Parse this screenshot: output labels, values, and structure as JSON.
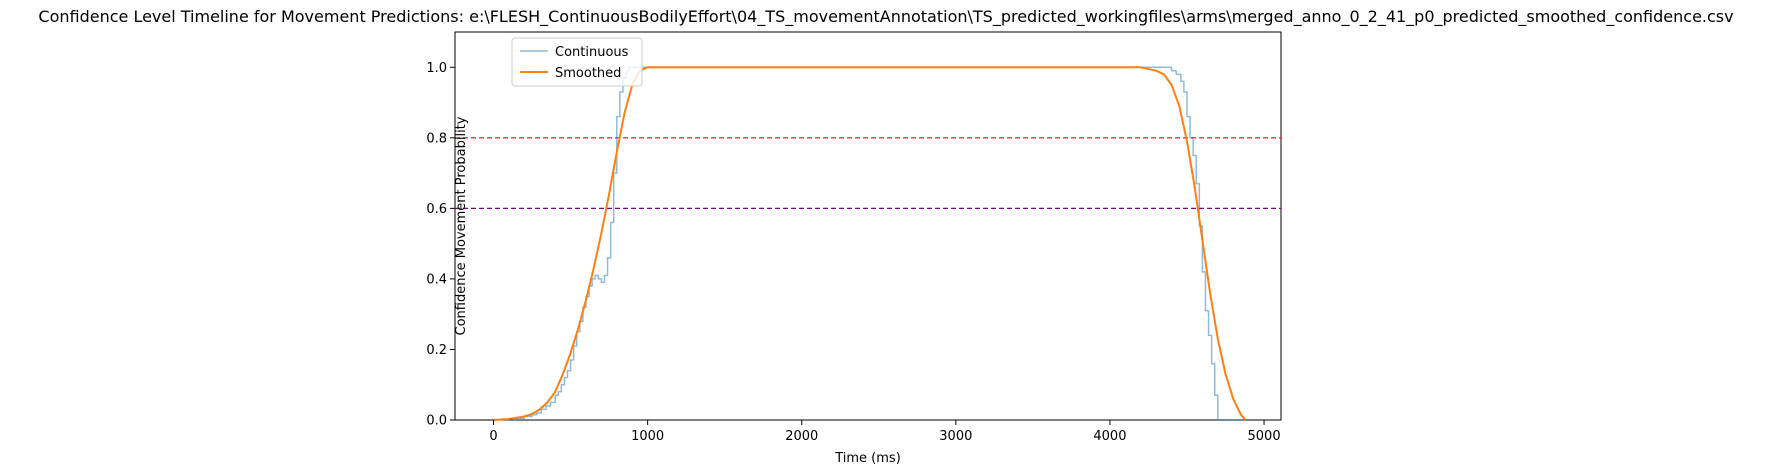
{
  "chart_data": {
    "type": "line",
    "title": "Confidence Level Timeline for Movement Predictions: e:\\FLESH_ContinuousBodilyEffort\\04_TS_movementAnnotation\\TS_predicted_workingfiles\\arms\\merged_anno_0_2_41_p0_predicted_smoothed_confidence.csv",
    "xlabel": "Time (ms)",
    "ylabel": "Confidence Movement Probability",
    "xlim": [
      -250,
      5110
    ],
    "ylim": [
      0,
      1.1
    ],
    "xticks": [
      0,
      1000,
      2000,
      3000,
      4000,
      5000
    ],
    "yticks": [
      0.0,
      0.2,
      0.4,
      0.6,
      0.8,
      1.0
    ],
    "xtick_labels": [
      "0",
      "1000",
      "2000",
      "3000",
      "4000",
      "5000"
    ],
    "ytick_labels": [
      "0.0",
      "0.2",
      "0.4",
      "0.6",
      "0.8",
      "1.0"
    ],
    "grid": false,
    "legend_position": "top-left",
    "reference_lines": [
      {
        "y": 0.8,
        "color": "#ff0000",
        "style": "dashed"
      },
      {
        "y": 0.6,
        "color": "#800080",
        "style": "dashed"
      }
    ],
    "series": [
      {
        "name": "Continuous",
        "color": "#1f77b4",
        "opacity": 0.5,
        "step": true,
        "x": [
          0,
          150,
          200,
          250,
          280,
          310,
          340,
          370,
          400,
          420,
          440,
          460,
          480,
          500,
          520,
          540,
          560,
          580,
          600,
          620,
          640,
          660,
          680,
          700,
          720,
          740,
          760,
          780,
          800,
          820,
          840,
          860,
          880,
          900,
          950,
          1000,
          4200,
          4300,
          4400,
          4430,
          4460,
          4480,
          4500,
          4520,
          4540,
          4560,
          4580,
          4600,
          4620,
          4640,
          4660,
          4680,
          4700,
          4720,
          4740,
          4800,
          4880
        ],
        "y": [
          0.0,
          0.005,
          0.01,
          0.015,
          0.02,
          0.03,
          0.04,
          0.05,
          0.07,
          0.08,
          0.1,
          0.12,
          0.14,
          0.17,
          0.21,
          0.25,
          0.28,
          0.32,
          0.35,
          0.38,
          0.4,
          0.41,
          0.4,
          0.39,
          0.41,
          0.46,
          0.56,
          0.7,
          0.86,
          0.93,
          0.97,
          0.99,
          1.0,
          1.0,
          1.0,
          1.0,
          1.0,
          1.0,
          0.99,
          0.98,
          0.96,
          0.93,
          0.86,
          0.8,
          0.75,
          0.67,
          0.55,
          0.42,
          0.31,
          0.24,
          0.16,
          0.07,
          0.0,
          0.0,
          0.0,
          0.0,
          0.0
        ],
        "width": 1.5
      },
      {
        "name": "Smoothed",
        "color": "#ff7f0e",
        "opacity": 1,
        "step": false,
        "x": [
          0,
          100,
          200,
          250,
          300,
          350,
          400,
          450,
          500,
          550,
          600,
          650,
          700,
          750,
          800,
          850,
          900,
          950,
          1000,
          1100,
          4000,
          4200,
          4300,
          4350,
          4400,
          4450,
          4500,
          4550,
          4600,
          4650,
          4700,
          4750,
          4800,
          4850,
          4880
        ],
        "y": [
          0.0,
          0.003,
          0.01,
          0.017,
          0.03,
          0.05,
          0.08,
          0.13,
          0.19,
          0.26,
          0.34,
          0.43,
          0.53,
          0.64,
          0.76,
          0.87,
          0.95,
          0.99,
          1.0,
          1.0,
          1.0,
          1.0,
          0.99,
          0.98,
          0.95,
          0.89,
          0.79,
          0.66,
          0.51,
          0.36,
          0.23,
          0.13,
          0.06,
          0.015,
          0.0
        ],
        "width": 2
      }
    ]
  }
}
